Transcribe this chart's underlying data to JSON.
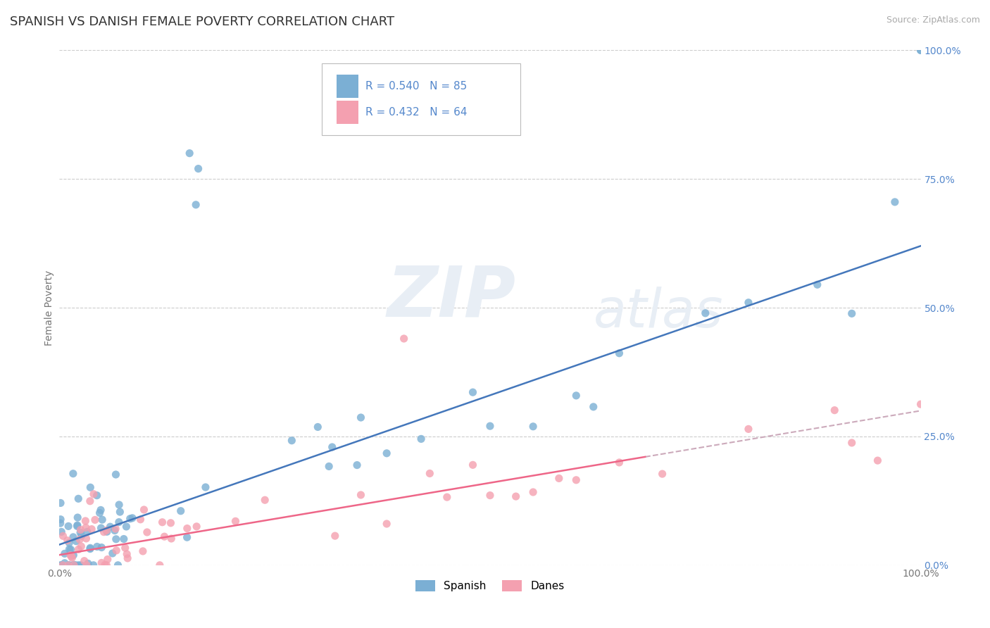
{
  "title": "SPANISH VS DANISH FEMALE POVERTY CORRELATION CHART",
  "source": "Source: ZipAtlas.com",
  "ylabel": "Female Poverty",
  "xlim": [
    0,
    1
  ],
  "ylim": [
    0,
    1
  ],
  "ytick_positions": [
    0.0,
    0.25,
    0.5,
    0.75,
    1.0
  ],
  "ytick_labels": [
    "0.0%",
    "25.0%",
    "50.0%",
    "75.0%",
    "100.0%"
  ],
  "xtick_positions": [
    0.0,
    1.0
  ],
  "xtick_labels": [
    "0.0%",
    "100.0%"
  ],
  "legend_r1": "R = 0.540",
  "legend_n1": "N = 85",
  "legend_r2": "R = 0.432",
  "legend_n2": "N = 64",
  "color_spanish": "#7BAFD4",
  "color_danish": "#F4A0B0",
  "color_trendline_spanish": "#4477BB",
  "color_trendline_danish": "#EE6688",
  "color_trendline_dashed": "#CCAABB",
  "title_fontsize": 13,
  "label_fontsize": 10,
  "right_tick_color": "#5588CC",
  "watermark_color": "#E8EEF5"
}
